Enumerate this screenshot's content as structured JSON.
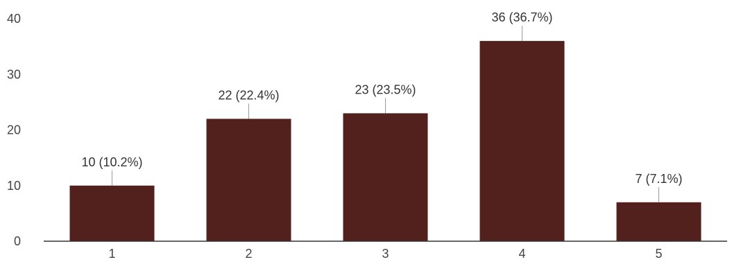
{
  "chart_data": {
    "type": "bar",
    "title": "",
    "xlabel": "",
    "ylabel": "",
    "categories": [
      "1",
      "2",
      "3",
      "4",
      "5"
    ],
    "values": [
      10,
      22,
      23,
      36,
      7
    ],
    "data_labels": [
      "10 (10.2%)",
      "22 (22.4%)",
      "23 (23.5%)",
      "36 (36.7%)",
      "7 (7.1%)"
    ],
    "ylim": [
      0,
      40
    ],
    "yticks": [
      0,
      10,
      20,
      30,
      40
    ],
    "grid": false,
    "legend": "none",
    "colors": {
      "bar": "#52211d",
      "axis": "#333333",
      "leader": "#999999",
      "text": "#444444"
    }
  }
}
